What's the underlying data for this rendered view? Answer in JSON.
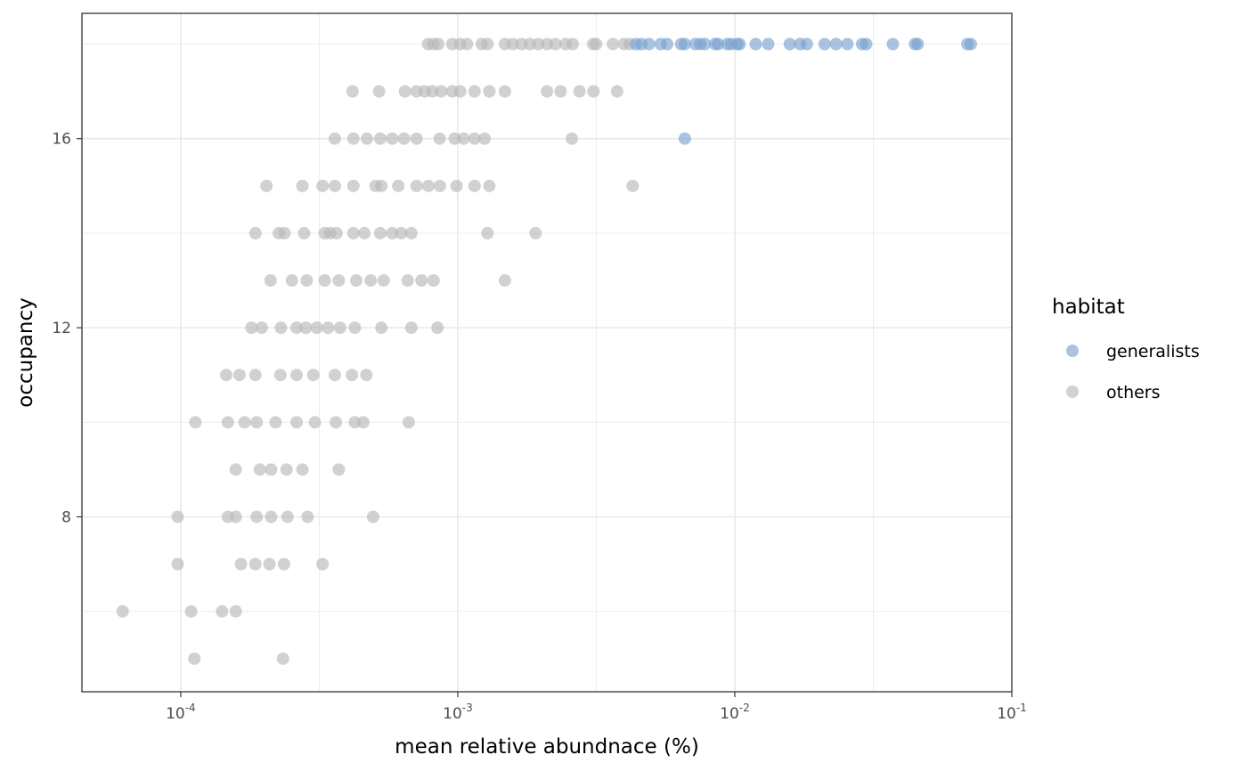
{
  "chart_data": {
    "type": "scatter",
    "xlabel": "mean relative abundnace (%)",
    "ylabel": "occupancy",
    "x_scale": "log10",
    "xlim": [
      4.4e-05,
      0.1
    ],
    "ylim": [
      4.3,
      18.65
    ],
    "x_ticks": [
      {
        "value": 0.0001,
        "base": "10",
        "exp": "-4"
      },
      {
        "value": 0.001,
        "base": "10",
        "exp": "-3"
      },
      {
        "value": 0.01,
        "base": "10",
        "exp": "-2"
      },
      {
        "value": 0.1,
        "base": "10",
        "exp": "-1"
      }
    ],
    "y_ticks": [
      8,
      12,
      16
    ],
    "y_minor_ticks": [
      6,
      10,
      14,
      18
    ],
    "grid": true,
    "legend": {
      "title": "habitat",
      "position": "right",
      "entries": [
        {
          "label": "generalists",
          "color": "#7ba3d0"
        },
        {
          "label": "others",
          "color": "#b8b8b8"
        }
      ]
    },
    "point_alpha": 0.65,
    "series": [
      {
        "name": "generalists",
        "color": "#7ba3d0",
        "points": [
          [
            0.0044,
            18
          ],
          [
            0.0046,
            18
          ],
          [
            0.0049,
            18
          ],
          [
            0.0054,
            18
          ],
          [
            0.0057,
            18
          ],
          [
            0.0064,
            18
          ],
          [
            0.0066,
            18
          ],
          [
            0.0072,
            18
          ],
          [
            0.0075,
            18
          ],
          [
            0.0078,
            18
          ],
          [
            0.0085,
            18
          ],
          [
            0.0087,
            18
          ],
          [
            0.0094,
            18
          ],
          [
            0.0097,
            18
          ],
          [
            0.0102,
            18
          ],
          [
            0.0104,
            18
          ],
          [
            0.0119,
            18
          ],
          [
            0.0132,
            18
          ],
          [
            0.0158,
            18
          ],
          [
            0.0172,
            18
          ],
          [
            0.0182,
            18
          ],
          [
            0.0211,
            18
          ],
          [
            0.0232,
            18
          ],
          [
            0.0255,
            18
          ],
          [
            0.0288,
            18
          ],
          [
            0.0298,
            18
          ],
          [
            0.0372,
            18
          ],
          [
            0.0447,
            18
          ],
          [
            0.0457,
            18
          ],
          [
            0.0691,
            18
          ],
          [
            0.0711,
            18
          ],
          [
            0.0066,
            16
          ]
        ]
      },
      {
        "name": "others",
        "color": "#b8b8b8",
        "points": [
          [
            0.000781,
            18
          ],
          [
            0.000817,
            18
          ],
          [
            0.00085,
            18
          ],
          [
            0.000955,
            18
          ],
          [
            0.00102,
            18
          ],
          [
            0.00108,
            18
          ],
          [
            0.00122,
            18
          ],
          [
            0.00128,
            18
          ],
          [
            0.00148,
            18
          ],
          [
            0.00158,
            18
          ],
          [
            0.0017,
            18
          ],
          [
            0.00182,
            18
          ],
          [
            0.00195,
            18
          ],
          [
            0.0021,
            18
          ],
          [
            0.00225,
            18
          ],
          [
            0.00245,
            18
          ],
          [
            0.0026,
            18
          ],
          [
            0.00308,
            18
          ],
          [
            0.00316,
            18
          ],
          [
            0.00363,
            18
          ],
          [
            0.00398,
            18
          ],
          [
            0.00417,
            18
          ],
          [
            0.000417,
            17
          ],
          [
            0.00052,
            17
          ],
          [
            0.000645,
            17
          ],
          [
            0.00071,
            17
          ],
          [
            0.00076,
            17
          ],
          [
            0.00081,
            17
          ],
          [
            0.000871,
            17
          ],
          [
            0.000955,
            17
          ],
          [
            0.00102,
            17
          ],
          [
            0.00115,
            17
          ],
          [
            0.0013,
            17
          ],
          [
            0.00148,
            17
          ],
          [
            0.0021,
            17
          ],
          [
            0.00235,
            17
          ],
          [
            0.00275,
            17
          ],
          [
            0.00309,
            17
          ],
          [
            0.00376,
            17
          ],
          [
            0.00036,
            16
          ],
          [
            0.00042,
            16
          ],
          [
            0.00047,
            16
          ],
          [
            0.000525,
            16
          ],
          [
            0.00058,
            16
          ],
          [
            0.00064,
            16
          ],
          [
            0.00071,
            16
          ],
          [
            0.00086,
            16
          ],
          [
            0.000975,
            16
          ],
          [
            0.00105,
            16
          ],
          [
            0.00115,
            16
          ],
          [
            0.00125,
            16
          ],
          [
            0.00258,
            16
          ],
          [
            0.000204,
            15
          ],
          [
            0.000275,
            15
          ],
          [
            0.000325,
            15
          ],
          [
            0.00036,
            15
          ],
          [
            0.00042,
            15
          ],
          [
            0.000505,
            15
          ],
          [
            0.00053,
            15
          ],
          [
            0.00061,
            15
          ],
          [
            0.00071,
            15
          ],
          [
            0.000783,
            15
          ],
          [
            0.000862,
            15
          ],
          [
            0.00099,
            15
          ],
          [
            0.00115,
            15
          ],
          [
            0.0013,
            15
          ],
          [
            0.00428,
            15
          ],
          [
            0.000186,
            14
          ],
          [
            0.000226,
            14
          ],
          [
            0.000237,
            14
          ],
          [
            0.000279,
            14
          ],
          [
            0.000331,
            14
          ],
          [
            0.000346,
            14
          ],
          [
            0.000365,
            14
          ],
          [
            0.00042,
            14
          ],
          [
            0.00046,
            14
          ],
          [
            0.000525,
            14
          ],
          [
            0.00058,
            14
          ],
          [
            0.000625,
            14
          ],
          [
            0.00068,
            14
          ],
          [
            0.00128,
            14
          ],
          [
            0.00191,
            14
          ],
          [
            0.000211,
            13
          ],
          [
            0.000252,
            13
          ],
          [
            0.000285,
            13
          ],
          [
            0.000331,
            13
          ],
          [
            0.000372,
            13
          ],
          [
            0.00043,
            13
          ],
          [
            0.000485,
            13
          ],
          [
            0.00054,
            13
          ],
          [
            0.00066,
            13
          ],
          [
            0.00074,
            13
          ],
          [
            0.000818,
            13
          ],
          [
            0.00148,
            13
          ],
          [
            0.00018,
            12
          ],
          [
            0.000196,
            12
          ],
          [
            0.00023,
            12
          ],
          [
            0.000262,
            12
          ],
          [
            0.000283,
            12
          ],
          [
            0.00031,
            12
          ],
          [
            0.00034,
            12
          ],
          [
            0.000376,
            12
          ],
          [
            0.000425,
            12
          ],
          [
            0.00053,
            12
          ],
          [
            0.00068,
            12
          ],
          [
            0.000845,
            12
          ],
          [
            0.000146,
            11
          ],
          [
            0.000163,
            11
          ],
          [
            0.000186,
            11
          ],
          [
            0.000229,
            11
          ],
          [
            0.000262,
            11
          ],
          [
            0.000301,
            11
          ],
          [
            0.00036,
            11
          ],
          [
            0.000415,
            11
          ],
          [
            0.000468,
            11
          ],
          [
            0.000113,
            10
          ],
          [
            0.000148,
            10
          ],
          [
            0.00017,
            10
          ],
          [
            0.000188,
            10
          ],
          [
            0.00022,
            10
          ],
          [
            0.000262,
            10
          ],
          [
            0.000305,
            10
          ],
          [
            0.000363,
            10
          ],
          [
            0.000425,
            10
          ],
          [
            0.000456,
            10
          ],
          [
            0.000665,
            10
          ],
          [
            0.000158,
            9
          ],
          [
            0.000193,
            9
          ],
          [
            0.000212,
            9
          ],
          [
            0.000241,
            9
          ],
          [
            0.000275,
            9
          ],
          [
            0.000372,
            9
          ],
          [
            9.75e-05,
            8
          ],
          [
            0.000148,
            8
          ],
          [
            0.000158,
            8
          ],
          [
            0.000188,
            8
          ],
          [
            0.000212,
            8
          ],
          [
            0.000243,
            8
          ],
          [
            0.000287,
            8
          ],
          [
            0.000495,
            8
          ],
          [
            9.75e-05,
            7
          ],
          [
            0.000165,
            7
          ],
          [
            0.000186,
            7
          ],
          [
            0.000209,
            7
          ],
          [
            0.000236,
            7
          ],
          [
            0.000325,
            7
          ],
          [
            6.17e-05,
            6
          ],
          [
            0.000109,
            6
          ],
          [
            0.000141,
            6
          ],
          [
            0.000158,
            6
          ],
          [
            0.000112,
            5
          ],
          [
            0.000234,
            5
          ]
        ]
      }
    ]
  }
}
